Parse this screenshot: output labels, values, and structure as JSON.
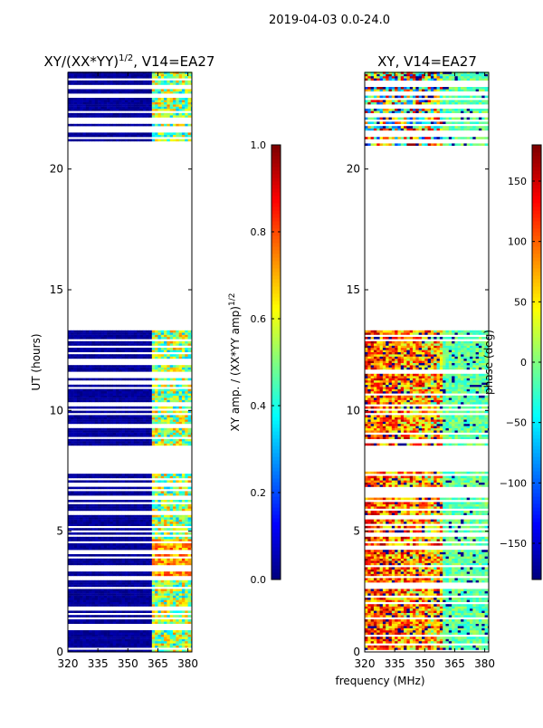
{
  "figure": {
    "suptitle": "2019-04-03 0.0-24.0",
    "shared_xlabel": "frequency (MHz)"
  },
  "chart_data": [
    {
      "type": "heatmap",
      "id": "amp",
      "title_main": "XY/(XX*YY)",
      "title_sup": "1/2",
      "title_tail": ", V14=EA27",
      "xlabel": "",
      "ylabel": "UT (hours)",
      "xlim": [
        320,
        382
      ],
      "ylim": [
        0,
        24
      ],
      "xticks": [
        320,
        335,
        350,
        365,
        380
      ],
      "yticks": [
        0,
        5,
        10,
        15,
        20
      ],
      "colorbar": {
        "label_main": "XY amp. / (XX*YY amp)",
        "label_sup": "1/2",
        "range": [
          0.0,
          1.0
        ],
        "ticks": [
          "0.0",
          "0.2",
          "0.4",
          "0.6",
          "0.8",
          "1.0"
        ],
        "tick_values": [
          0.0,
          0.2,
          0.4,
          0.6,
          0.8,
          1.0
        ]
      },
      "blank_utc_ranges_hours": [
        [
          7.4,
          8.5
        ],
        [
          13.3,
          20.8
        ]
      ],
      "typical_value_low_band": 0.0,
      "typical_value_high_band_364_382MHz": 0.6
    },
    {
      "type": "heatmap",
      "id": "phase",
      "title_main": "XY, V14=EA27",
      "xlabel": "frequency (MHz)",
      "ylabel": "",
      "xlim": [
        320,
        382
      ],
      "ylim": [
        0,
        24
      ],
      "xticks": [
        320,
        335,
        350,
        365,
        380
      ],
      "yticks": [
        0,
        5,
        10,
        15,
        20
      ],
      "colorbar": {
        "label_main": "phase (deg)",
        "range": [
          -180,
          180
        ],
        "ticks": [
          "−150",
          "−100",
          "−50",
          "0",
          "50",
          "100",
          "150"
        ],
        "tick_values": [
          -150,
          -100,
          -50,
          0,
          50,
          100,
          150
        ]
      },
      "blank_utc_ranges_hours": [
        [
          7.4,
          8.5
        ],
        [
          13.3,
          20.8
        ]
      ]
    }
  ]
}
